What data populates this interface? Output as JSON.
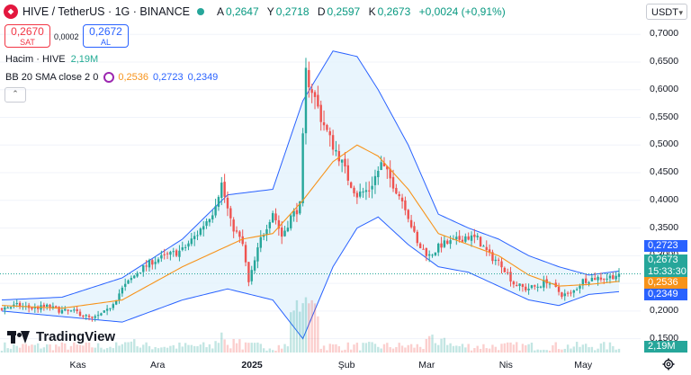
{
  "header": {
    "title": "HIVE / TetherUS · 1G · BINANCE",
    "ohlc": [
      {
        "k": "A",
        "v": "0,2647"
      },
      {
        "k": "Y",
        "v": "0,2718"
      },
      {
        "k": "D",
        "v": "0,2597"
      },
      {
        "k": "K",
        "v": "0,2673"
      }
    ],
    "change": "+0,0024 (+0,91%)"
  },
  "trade": {
    "sell_price": "0,2670",
    "sell_label": "SAT",
    "spread": "0,0002",
    "buy_price": "0,2672",
    "buy_label": "AL"
  },
  "indicators": {
    "volume_label": "Hacim · HIVE",
    "volume_value": "2,19M",
    "bb_label": "BB 20 SMA close 2 0",
    "bb_basis": "0,2536",
    "bb_upper": "0,2723",
    "bb_lower": "0,2349"
  },
  "currency_button": "USDT",
  "price_tags": {
    "upper": "0,2723",
    "last": "0,2673",
    "countdown": "15:33:30",
    "basis": "0,2536",
    "lower": "0,2349",
    "volume": "2,19M"
  },
  "brand": "TradingView",
  "colors": {
    "up": "#26a69a",
    "down": "#ef5350",
    "basis": "#f7931a",
    "band": "#2962ff",
    "band_fill": "#e3f2fd"
  },
  "chart_data": {
    "type": "candlestick",
    "price_axis": [
      "0,7000",
      "0,6500",
      "0,6000",
      "0,5500",
      "0,5000",
      "0,4500",
      "0,4000",
      "0,3500",
      "0,3000",
      "0,2500",
      "0,2000",
      "0,1500"
    ],
    "time_axis": [
      "Kas",
      "Ara",
      "2025",
      "Şub",
      "Mar",
      "Nis",
      "May"
    ],
    "ylim": [
      0.125,
      0.715
    ],
    "days": 206,
    "keys": [
      [
        0,
        0.205
      ],
      [
        5,
        0.21
      ],
      [
        10,
        0.205
      ],
      [
        15,
        0.208
      ],
      [
        20,
        0.2
      ],
      [
        25,
        0.198
      ],
      [
        30,
        0.185
      ],
      [
        35,
        0.2
      ],
      [
        40,
        0.24
      ],
      [
        45,
        0.27
      ],
      [
        50,
        0.29
      ],
      [
        55,
        0.3
      ],
      [
        60,
        0.31
      ],
      [
        65,
        0.34
      ],
      [
        70,
        0.38
      ],
      [
        73,
        0.43
      ],
      [
        76,
        0.36
      ],
      [
        80,
        0.32
      ],
      [
        82,
        0.25
      ],
      [
        86,
        0.33
      ],
      [
        90,
        0.38
      ],
      [
        93,
        0.335
      ],
      [
        96,
        0.37
      ],
      [
        99,
        0.39
      ],
      [
        101,
        0.63
      ],
      [
        103,
        0.6
      ],
      [
        106,
        0.55
      ],
      [
        109,
        0.51
      ],
      [
        112,
        0.48
      ],
      [
        115,
        0.44
      ],
      [
        118,
        0.41
      ],
      [
        122,
        0.42
      ],
      [
        126,
        0.465
      ],
      [
        130,
        0.43
      ],
      [
        134,
        0.39
      ],
      [
        138,
        0.32
      ],
      [
        142,
        0.3
      ],
      [
        146,
        0.32
      ],
      [
        150,
        0.325
      ],
      [
        154,
        0.335
      ],
      [
        158,
        0.33
      ],
      [
        162,
        0.3
      ],
      [
        166,
        0.285
      ],
      [
        170,
        0.25
      ],
      [
        174,
        0.24
      ],
      [
        178,
        0.245
      ],
      [
        181,
        0.255
      ],
      [
        186,
        0.23
      ],
      [
        189,
        0.23
      ],
      [
        193,
        0.255
      ],
      [
        197,
        0.26
      ],
      [
        201,
        0.26
      ],
      [
        205,
        0.267
      ]
    ],
    "bands": {
      "basis": [
        [
          0,
          0.21
        ],
        [
          20,
          0.205
        ],
        [
          40,
          0.22
        ],
        [
          60,
          0.28
        ],
        [
          80,
          0.33
        ],
        [
          90,
          0.34
        ],
        [
          100,
          0.4
        ],
        [
          110,
          0.47
        ],
        [
          118,
          0.5
        ],
        [
          125,
          0.48
        ],
        [
          135,
          0.42
        ],
        [
          145,
          0.34
        ],
        [
          155,
          0.32
        ],
        [
          165,
          0.3
        ],
        [
          175,
          0.265
        ],
        [
          185,
          0.245
        ],
        [
          195,
          0.248
        ],
        [
          205,
          0.2536
        ]
      ],
      "upper": [
        [
          0,
          0.22
        ],
        [
          20,
          0.225
        ],
        [
          40,
          0.26
        ],
        [
          60,
          0.33
        ],
        [
          75,
          0.41
        ],
        [
          90,
          0.42
        ],
        [
          100,
          0.58
        ],
        [
          110,
          0.67
        ],
        [
          118,
          0.66
        ],
        [
          125,
          0.6
        ],
        [
          135,
          0.5
        ],
        [
          145,
          0.375
        ],
        [
          155,
          0.35
        ],
        [
          165,
          0.33
        ],
        [
          175,
          0.3
        ],
        [
          185,
          0.28
        ],
        [
          195,
          0.265
        ],
        [
          205,
          0.2723
        ]
      ],
      "lower": [
        [
          0,
          0.2
        ],
        [
          20,
          0.19
        ],
        [
          40,
          0.18
        ],
        [
          60,
          0.22
        ],
        [
          75,
          0.24
        ],
        [
          90,
          0.22
        ],
        [
          100,
          0.15
        ],
        [
          110,
          0.28
        ],
        [
          118,
          0.35
        ],
        [
          125,
          0.37
        ],
        [
          135,
          0.32
        ],
        [
          145,
          0.28
        ],
        [
          155,
          0.27
        ],
        [
          165,
          0.245
        ],
        [
          175,
          0.22
        ],
        [
          185,
          0.21
        ],
        [
          195,
          0.23
        ],
        [
          205,
          0.2349
        ]
      ]
    },
    "last_price": 0.2673
  }
}
